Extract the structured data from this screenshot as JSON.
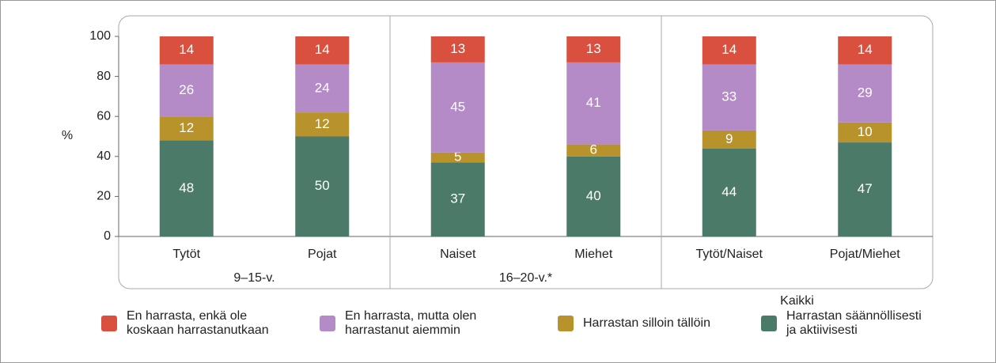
{
  "chart_data": {
    "type": "stacked_bar",
    "ylabel": "%",
    "groups": [
      {
        "label": "9–15-v.",
        "categories": [
          "Tytöt",
          "Pojat"
        ]
      },
      {
        "label": "16–20-v.*",
        "categories": [
          "Naiset",
          "Miehet"
        ]
      },
      {
        "label": "Kaikki",
        "categories": [
          "Tytöt/Naiset",
          "Pojat/Miehet"
        ]
      }
    ],
    "series": [
      {
        "name": "En harrasta, enkä ole koskaan harrastanutkaan",
        "color": "#d9503f",
        "values": [
          14,
          14,
          13,
          13,
          14,
          14
        ]
      },
      {
        "name": "En harrasta, mutta olen harrastanut aiemmin",
        "color": "#b48bc7",
        "values": [
          26,
          24,
          45,
          41,
          33,
          29
        ]
      },
      {
        "name": "Harrastan silloin tällöin",
        "color": "#b8922b",
        "values": [
          12,
          12,
          5,
          6,
          9,
          10
        ]
      },
      {
        "name": "Harrastan säännöllisesti ja aktiivisesti",
        "color": "#4b7a68",
        "values": [
          48,
          50,
          37,
          40,
          44,
          47
        ]
      }
    ],
    "ylim": [
      0,
      100
    ],
    "yticks": [
      0,
      20,
      40,
      60,
      80,
      100
    ]
  }
}
